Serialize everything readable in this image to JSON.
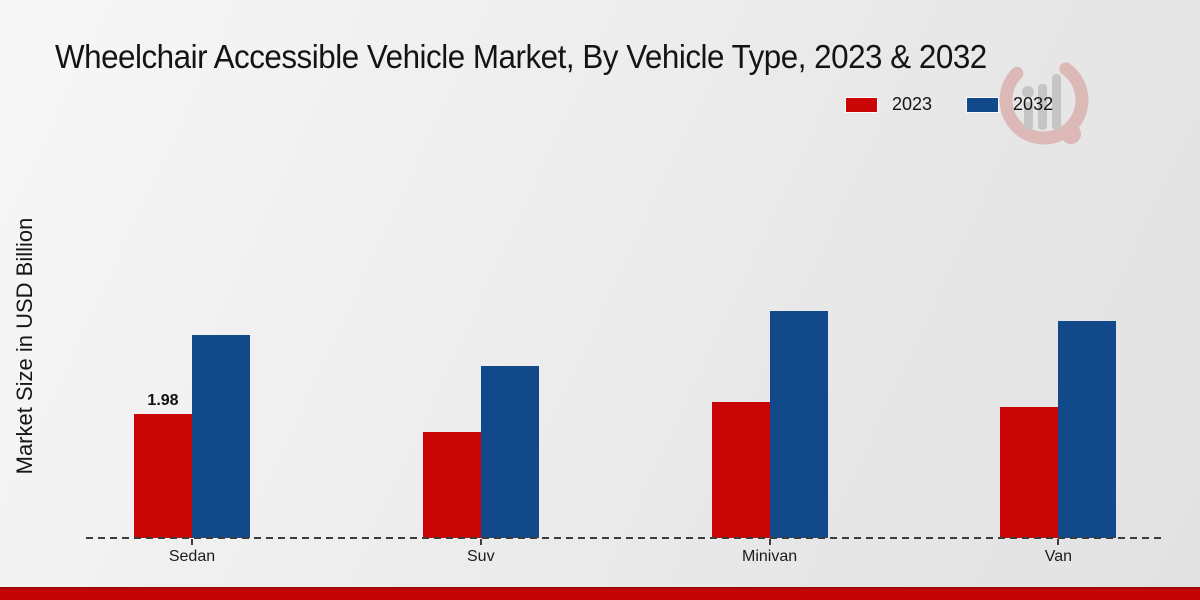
{
  "title": "Wheelchair Accessible Vehicle Market, By Vehicle Type, 2023 & 2032",
  "y_axis_label": "Market Size in USD Billion",
  "legend": {
    "items": [
      {
        "label": "2023",
        "color": "#c90505"
      },
      {
        "label": "2032",
        "color": "#11498b"
      }
    ]
  },
  "colors": {
    "series_2023": "#c90505",
    "series_2032": "#11498b",
    "axis_dash": "#3c3c3c",
    "footer_bar": "#c40404",
    "background": "#ececec"
  },
  "chart_data": {
    "type": "bar",
    "title": "Wheelchair Accessible Vehicle Market, By Vehicle Type, 2023 & 2032",
    "categories": [
      "Sedan",
      "Suv",
      "Minivan",
      "Van"
    ],
    "series": [
      {
        "name": "2023",
        "color": "#c90505",
        "values": [
          1.98,
          1.68,
          2.16,
          2.08
        ],
        "data_labels": [
          "1.98",
          "",
          "",
          ""
        ]
      },
      {
        "name": "2032",
        "color": "#11498b",
        "values": [
          3.24,
          2.74,
          3.61,
          3.46
        ],
        "data_labels": [
          "",
          "",
          "",
          ""
        ]
      }
    ],
    "xlabel": "",
    "ylabel": "Market Size in USD Billion",
    "ylim": [
      0,
      4.3
    ],
    "grid": false,
    "legend_position": "top-right",
    "baseline_style": "dashed"
  }
}
